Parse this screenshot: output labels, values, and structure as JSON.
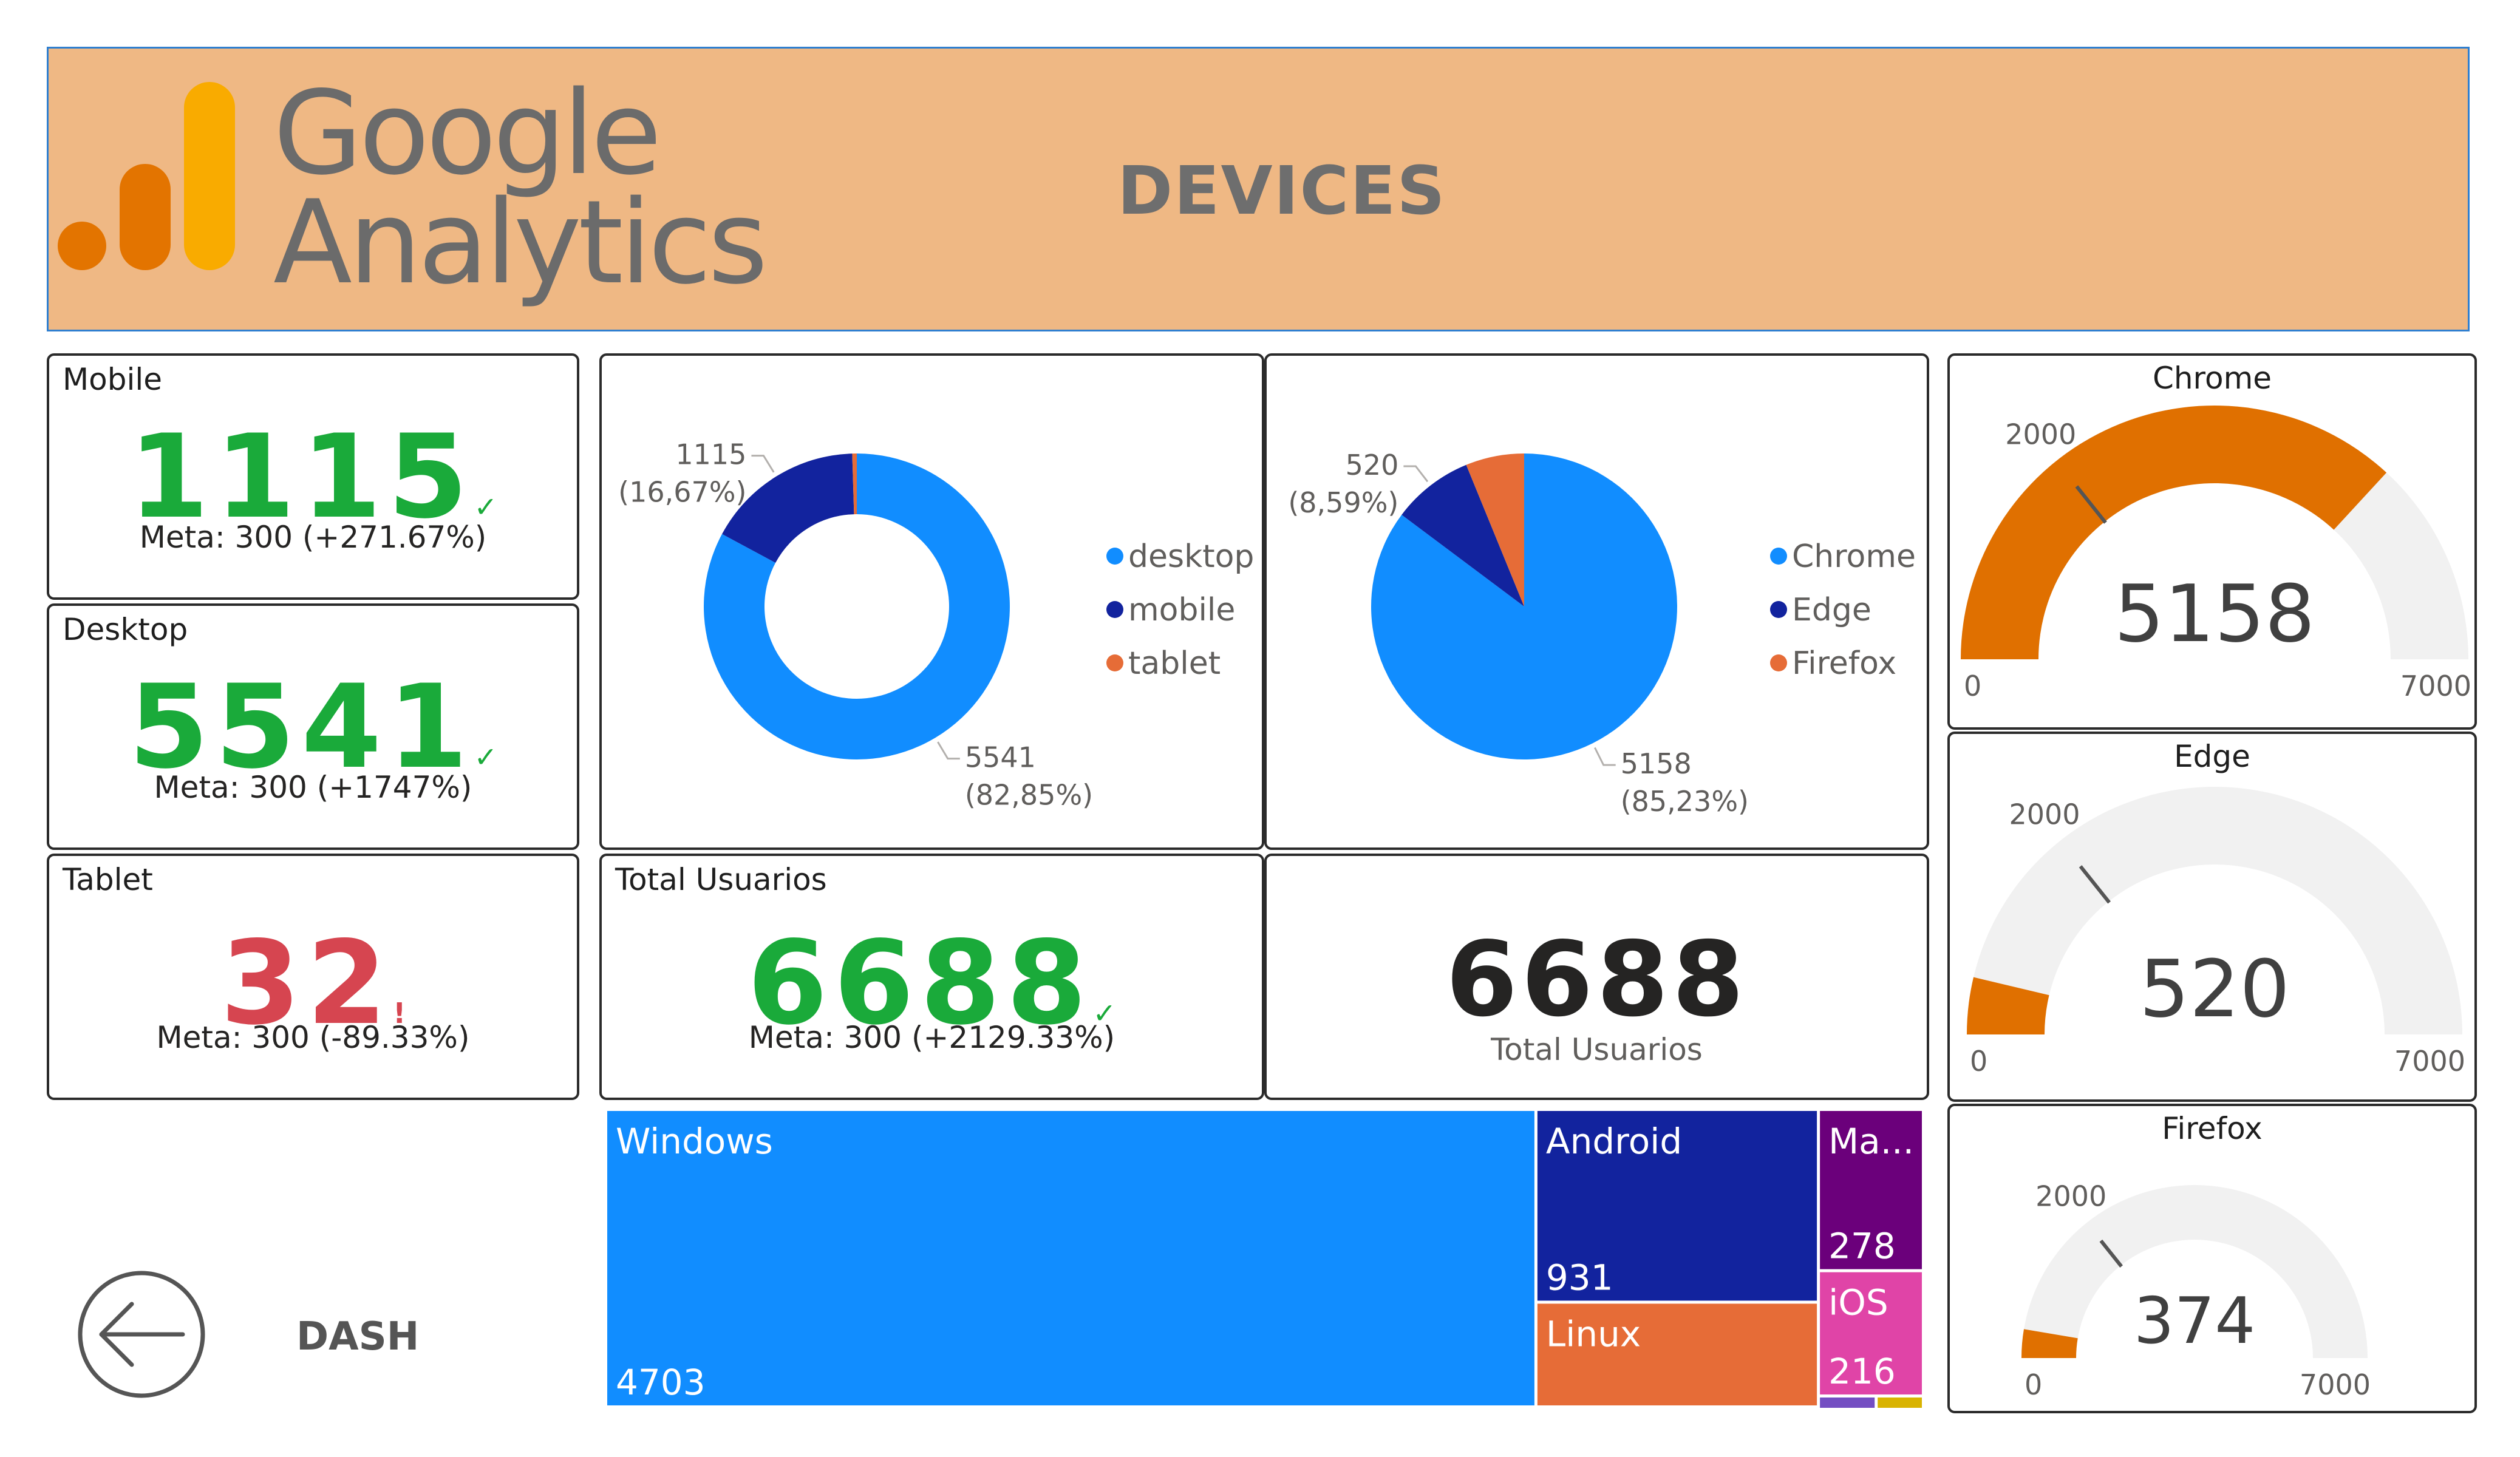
{
  "header": {
    "logo_line1": "Google",
    "logo_line2": "Analytics",
    "title": "DEVICES"
  },
  "kpis": {
    "mobile": {
      "label": "Mobile",
      "value": "1115",
      "meta": "Meta: 300 (+271.67%)",
      "status": "ok"
    },
    "desktop": {
      "label": "Desktop",
      "value": "5541",
      "meta": "Meta: 300 (+1747%)",
      "status": "ok"
    },
    "tablet": {
      "label": "Tablet",
      "value": "32",
      "meta": "Meta: 300 (-89.33%)",
      "status": "warning"
    },
    "total": {
      "label": "Total Usuarios",
      "value": "6688",
      "meta": "Meta: 300 (+2129.33%)",
      "status": "ok"
    }
  },
  "total_card": {
    "value": "6688",
    "caption": "Total Usuarios"
  },
  "nav": {
    "back_label": "DASH"
  },
  "icons": {
    "back": "back-arrow-icon",
    "ok": "checkmark-icon",
    "warning": "exclamation-icon",
    "logo": "google-analytics-logo-icon"
  },
  "colors": {
    "banner": "#efb884",
    "blue": "#118dff",
    "navy": "#12239e",
    "orange": "#e66c37",
    "purple": "#6b007b",
    "pink": "#e044a7",
    "gauge_fill": "#e07000",
    "gauge_track": "#f1f1f1",
    "green": "#1aaa3a",
    "red": "#d64550"
  },
  "chart_data": [
    {
      "type": "donut",
      "series": [
        {
          "name": "desktop",
          "value": 5541,
          "label": "5541",
          "pct": "(82,85%)",
          "color": "#118dff"
        },
        {
          "name": "mobile",
          "value": 1115,
          "label": "1115",
          "pct": "(16,67%)",
          "color": "#12239e"
        },
        {
          "name": "tablet",
          "value": 32,
          "color": "#e66c37"
        }
      ],
      "legend": [
        "desktop",
        "mobile",
        "tablet"
      ],
      "legend_position": "right"
    },
    {
      "type": "pie",
      "series": [
        {
          "name": "Chrome",
          "value": 5158,
          "label": "5158",
          "pct": "(85,23%)",
          "color": "#118dff"
        },
        {
          "name": "Edge",
          "value": 520,
          "label": "520",
          "pct": "(8,59%)",
          "color": "#12239e"
        },
        {
          "name": "Firefox",
          "value": 374,
          "color": "#e66c37"
        }
      ],
      "legend": [
        "Chrome",
        "Edge",
        "Firefox"
      ],
      "legend_position": "right"
    },
    {
      "type": "treemap",
      "items": [
        {
          "name": "Windows",
          "value": 4703,
          "value_label": "4703",
          "color": "#118dff"
        },
        {
          "name": "Android",
          "value": 931,
          "value_label": "931",
          "color": "#12239e"
        },
        {
          "name": "Linux",
          "value": 506,
          "value_label": "",
          "color": "#e66c37"
        },
        {
          "name": "Ma...",
          "value": 278,
          "value_label": "278",
          "color": "#6b007b"
        },
        {
          "name": "iOS",
          "value": 216,
          "value_label": "216",
          "color": "#e044a7"
        }
      ]
    },
    {
      "type": "gauge",
      "title": "Chrome",
      "value": 5158,
      "value_label": "5158",
      "min": 0,
      "max": 7000,
      "target": 2000,
      "min_label": "0",
      "max_label": "7000",
      "target_label": "2000"
    },
    {
      "type": "gauge",
      "title": "Edge",
      "value": 520,
      "value_label": "520",
      "min": 0,
      "max": 7000,
      "target": 2000,
      "min_label": "0",
      "max_label": "7000",
      "target_label": "2000"
    },
    {
      "type": "gauge",
      "title": "Firefox",
      "value": 374,
      "value_label": "374",
      "min": 0,
      "max": 7000,
      "target": 2000,
      "min_label": "0",
      "max_label": "7000",
      "target_label": "2000"
    }
  ]
}
